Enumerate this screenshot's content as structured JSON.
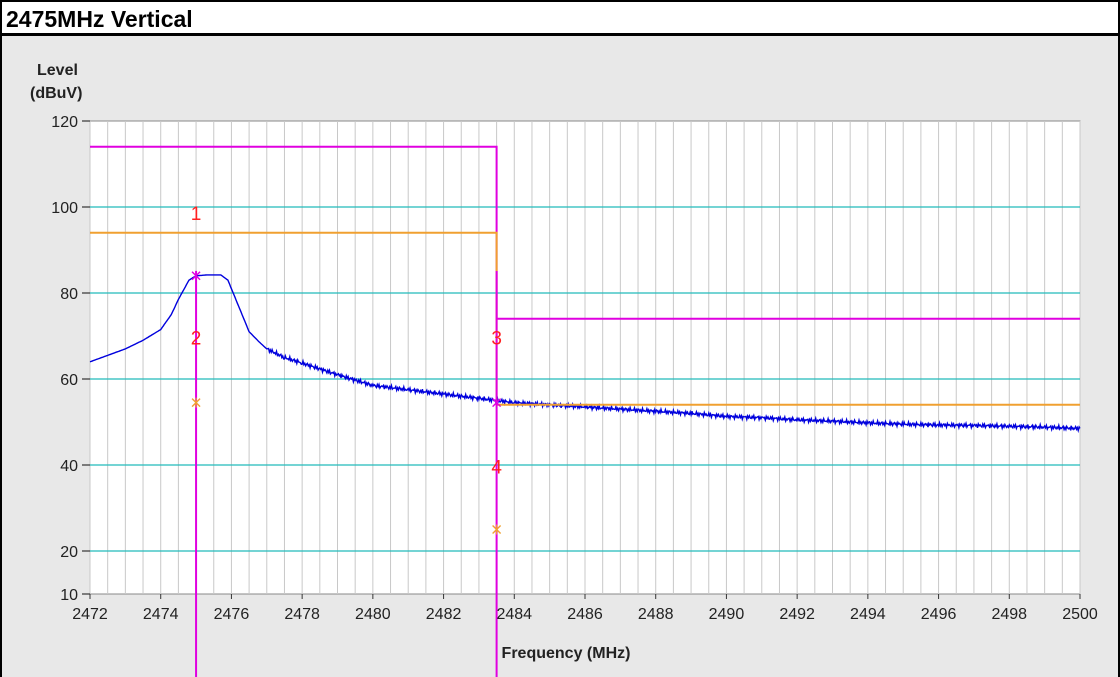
{
  "title": "2475MHz Vertical",
  "chart_data": {
    "type": "line",
    "ylabel_line1": "Level",
    "ylabel_line2": "(dBuV)",
    "xlabel": "Frequency (MHz)",
    "xlim": [
      2472,
      2500
    ],
    "ylim": [
      10,
      120
    ],
    "x_ticks": [
      2472,
      2474,
      2476,
      2478,
      2480,
      2482,
      2484,
      2486,
      2488,
      2490,
      2492,
      2494,
      2496,
      2498,
      2500
    ],
    "y_ticks": [
      10,
      20,
      40,
      60,
      80,
      100,
      120
    ],
    "grid_horizontal": [
      20,
      40,
      60,
      80,
      100
    ],
    "colors": {
      "trace": "#0000dd",
      "limit": "#e000e0",
      "avg_limit": "#f0a030",
      "grid_h": "#22bbbb",
      "grid_v": "#c8c8c8",
      "marker_text": "#ff2020"
    },
    "series": [
      {
        "kind": "trace",
        "points": [
          [
            2472,
            64
          ],
          [
            2472.5,
            65.5
          ],
          [
            2473,
            67
          ],
          [
            2473.5,
            69
          ],
          [
            2474,
            71.5
          ],
          [
            2474.3,
            75
          ],
          [
            2474.5,
            78.5
          ],
          [
            2474.8,
            83
          ],
          [
            2475,
            84
          ],
          [
            2475.3,
            84.2
          ],
          [
            2475.7,
            84.2
          ],
          [
            2475.9,
            83
          ],
          [
            2476.1,
            79
          ],
          [
            2476.3,
            75
          ],
          [
            2476.5,
            71
          ],
          [
            2476.8,
            68.5
          ],
          [
            2477,
            67
          ],
          [
            2477.5,
            65
          ],
          [
            2478,
            63.7
          ],
          [
            2479,
            61
          ],
          [
            2480,
            58.5
          ],
          [
            2481,
            57.5
          ],
          [
            2482,
            56.5
          ],
          [
            2483,
            55.5
          ],
          [
            2483.5,
            55
          ],
          [
            2484,
            54.5
          ],
          [
            2485,
            54
          ],
          [
            2486,
            53.5
          ],
          [
            2487,
            53
          ],
          [
            2488,
            52.5
          ],
          [
            2489,
            52
          ],
          [
            2490,
            51.3
          ],
          [
            2491,
            51
          ],
          [
            2492,
            50.5
          ],
          [
            2493,
            50.2
          ],
          [
            2494,
            49.8
          ],
          [
            2495,
            49.5
          ],
          [
            2496,
            49.3
          ],
          [
            2497,
            49.2
          ],
          [
            2498,
            49
          ],
          [
            2499,
            48.8
          ],
          [
            2500,
            48.5
          ]
        ]
      },
      {
        "kind": "limit",
        "points": [
          [
            2472,
            114
          ],
          [
            2483.5,
            114
          ],
          [
            2483.5,
            74
          ],
          [
            2500,
            74
          ]
        ]
      },
      {
        "kind": "avg_limit",
        "points": [
          [
            2472,
            94
          ],
          [
            2483.5,
            94
          ],
          [
            2483.5,
            54
          ],
          [
            2500,
            54
          ]
        ]
      }
    ],
    "marker_lines": [
      2475,
      2483.5
    ],
    "markers": [
      {
        "label": "1",
        "x": 2475,
        "y": 97
      },
      {
        "label": "2",
        "x": 2475,
        "y": 68
      },
      {
        "label": "3",
        "x": 2483.5,
        "y": 68
      },
      {
        "label": "4",
        "x": 2483.5,
        "y": 38
      }
    ],
    "marker_points": [
      {
        "x": 2475,
        "y": 84,
        "style": "limit"
      },
      {
        "x": 2475,
        "y": 54.5,
        "style": "avg_limit"
      },
      {
        "x": 2483.5,
        "y": 54.5,
        "style": "limit"
      },
      {
        "x": 2483.5,
        "y": 25,
        "style": "avg_limit"
      }
    ]
  }
}
